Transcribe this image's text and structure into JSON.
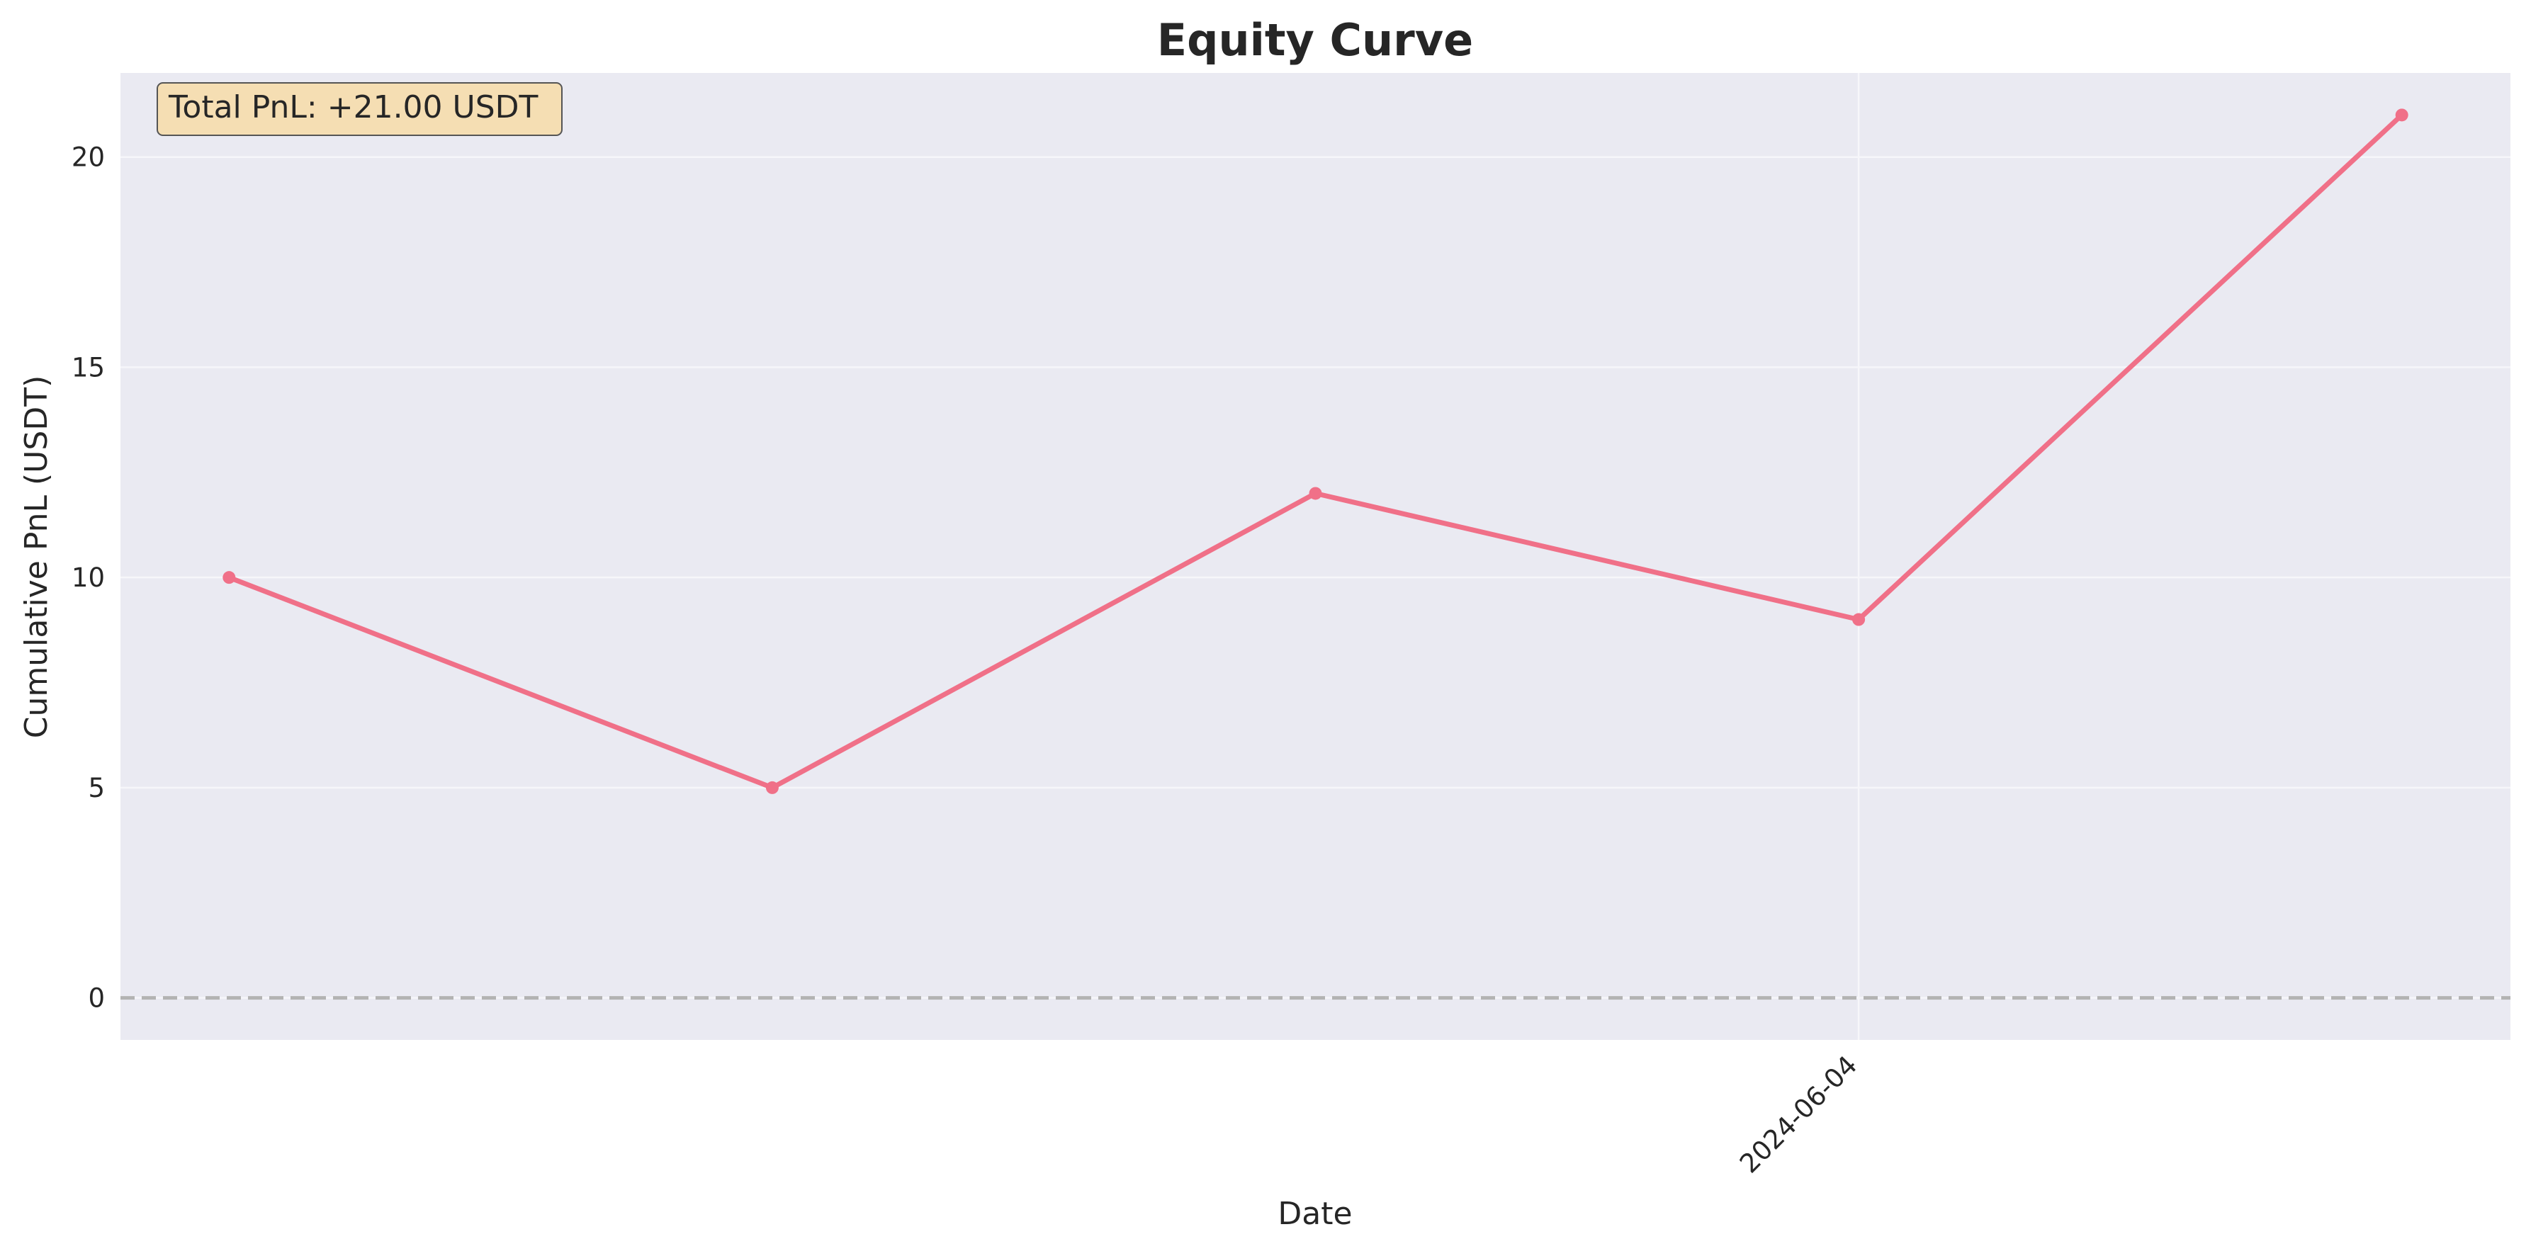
{
  "chart_data": {
    "type": "line",
    "title": "Equity Curve",
    "xlabel": "Date",
    "ylabel": "Cumulative PnL (USDT)",
    "x": [
      0,
      1,
      2,
      3,
      4
    ],
    "xlim": [
      -0.2,
      4.2
    ],
    "ylim": [
      -1,
      22
    ],
    "yticks": [
      0,
      5,
      10,
      15,
      20
    ],
    "xticks": [
      {
        "x": 3,
        "label": "2024-06-04"
      }
    ],
    "series": [
      {
        "name": "Cumulative PnL",
        "values": [
          10,
          5,
          12,
          9,
          21
        ]
      }
    ],
    "reference_line": {
      "y": 0,
      "style": "dashed"
    },
    "grid": true,
    "annotation": "Total PnL: +21.00 USDT",
    "annotation_placement": "top-left"
  },
  "colors": {
    "line": "#F07088",
    "plot_background": "#EAEAF2",
    "grid": "#F6F6FA",
    "zero_line": "#B3B3B3",
    "annotation_background": "#F5DEB3",
    "annotation_border": "#555555",
    "text": "#262626"
  }
}
